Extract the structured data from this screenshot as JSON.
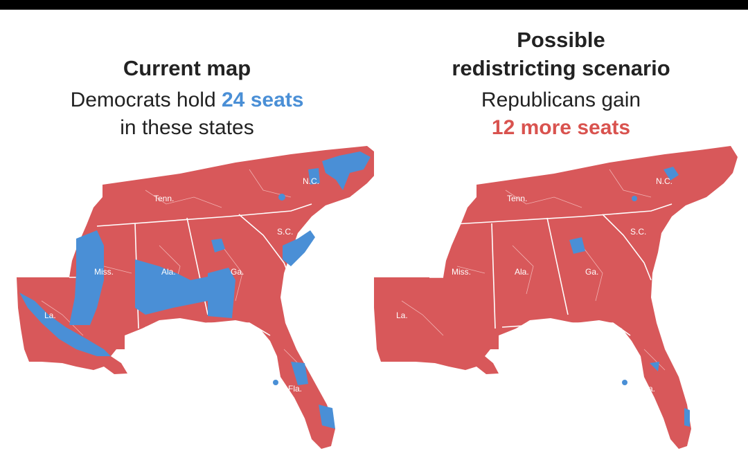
{
  "colors": {
    "republican": "#d8585a",
    "democrat": "#4a8fd6",
    "border": "#f4c4c4",
    "state_border": "#ffffff"
  },
  "left_panel": {
    "title": "Current map",
    "sub_prefix": "Democrats hold ",
    "sub_highlight": "24 seats",
    "sub_line2": "in these states"
  },
  "right_panel": {
    "title_line1": "Possible",
    "title_line2": "redistricting scenario",
    "sub_line1": "Republicans gain",
    "sub_highlight": "12 more seats"
  },
  "state_labels": {
    "tenn": "Tenn.",
    "nc": "N.C.",
    "sc": "S.C.",
    "miss": "Miss.",
    "ala": "Ala.",
    "ga": "Ga.",
    "la": "La.",
    "fla": "Fla."
  }
}
